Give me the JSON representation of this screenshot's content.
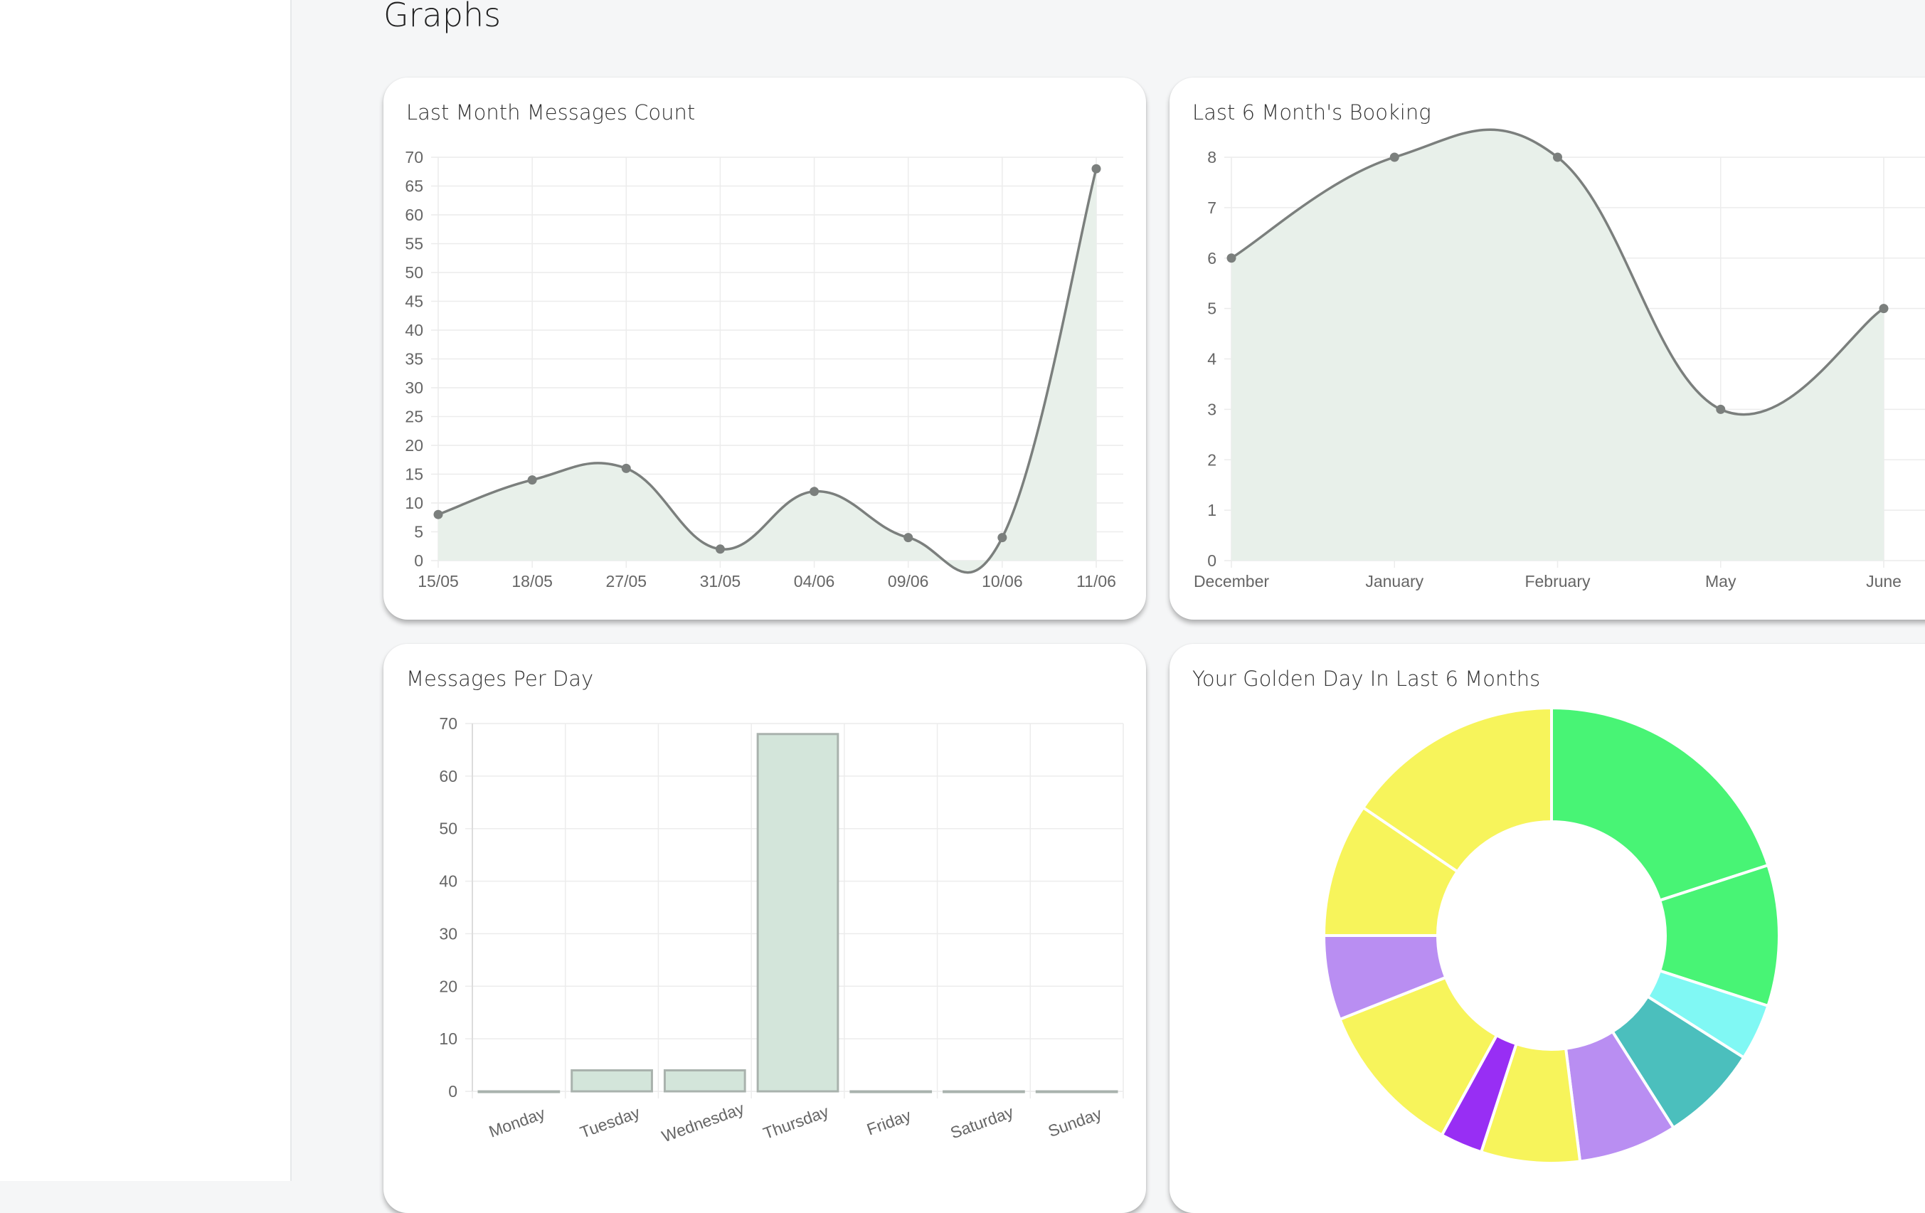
{
  "page": {
    "title": "Graphs"
  },
  "cards": {
    "msg_count": {
      "title": "Last Month Messages Count"
    },
    "booking": {
      "title": "Last 6 Month's Booking"
    },
    "per_day": {
      "title": "Messages Per Day"
    },
    "golden": {
      "title": "Your Golden Day In Last 6 Months"
    }
  },
  "colors": {
    "line": "#7b7f7d",
    "fill": "#e8f0ea",
    "bar_fill": "#d3e5da",
    "bar_stroke": "#a9b2ad",
    "grid": "#ececec"
  },
  "chart_data": [
    {
      "id": "msg_count",
      "type": "area",
      "title": "Last Month Messages Count",
      "categories": [
        "15/05",
        "18/05",
        "27/05",
        "31/05",
        "04/06",
        "09/06",
        "10/06",
        "11/06"
      ],
      "values": [
        8,
        14,
        16,
        2,
        12,
        4,
        4,
        68
      ],
      "ylim": [
        0,
        70
      ],
      "yticks": [
        0,
        5,
        10,
        15,
        20,
        25,
        30,
        35,
        40,
        45,
        50,
        55,
        60,
        65,
        70
      ],
      "grid": true
    },
    {
      "id": "booking",
      "type": "area",
      "title": "Last 6 Month's Booking",
      "categories": [
        "December",
        "January",
        "February",
        "May",
        "June"
      ],
      "values": [
        6,
        8,
        8,
        3,
        5
      ],
      "ylim": [
        0,
        8
      ],
      "yticks": [
        0,
        1,
        2,
        3,
        4,
        5,
        6,
        7,
        8
      ],
      "grid": true
    },
    {
      "id": "per_day",
      "type": "bar",
      "title": "Messages Per Day",
      "categories": [
        "Monday",
        "Tuesday",
        "Wednesday",
        "Thursday",
        "Friday",
        "Saturday",
        "Sunday"
      ],
      "values": [
        0,
        4,
        4,
        68,
        0,
        0,
        0
      ],
      "ylim": [
        0,
        70
      ],
      "yticks": [
        0,
        10,
        20,
        30,
        40,
        50,
        60,
        70
      ],
      "grid": true
    },
    {
      "id": "golden",
      "type": "pie",
      "title": "Your Golden Day In Last 6 Months",
      "values": [
        20,
        10,
        4,
        7,
        7,
        7,
        3,
        11,
        6,
        9.5,
        15.5
      ],
      "colors": [
        "#48f475",
        "#48f475",
        "#80f8f4",
        "#4bbfbd",
        "#b98ef2",
        "#f7f45b",
        "#982ef4",
        "#f7f45b",
        "#b98ef2",
        "#f7f45b",
        "#f7f45b"
      ]
    }
  ]
}
